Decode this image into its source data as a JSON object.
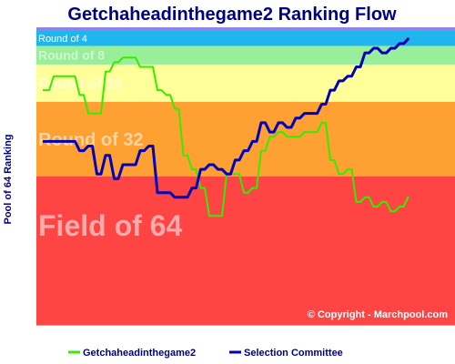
{
  "chart_data": {
    "type": "line",
    "title": "Getchaheadinthegame2 Ranking Flow",
    "ylabel": "Pool of 64 Ranking",
    "xlabel": "",
    "bands": [
      {
        "label": "Round of 4",
        "from": 1,
        "to": 4,
        "color": "#1FB5EE"
      },
      {
        "label": "Round of 8",
        "from": 5,
        "to": 8,
        "color": "#99EE99"
      },
      {
        "label": "Round of 16",
        "from": 9,
        "to": 16,
        "color": "#FFFF99"
      },
      {
        "label": "Round of 32",
        "from": 17,
        "to": 32,
        "color": "#FFA033"
      },
      {
        "label": "Field of 64",
        "from": 33,
        "to": 64,
        "color": "#FF4444"
      }
    ],
    "top_band_color": "#8C86E6",
    "ylim": [
      0.5,
      64
    ],
    "x_count": 43,
    "series": [
      {
        "name": "Getchaheadinthegame2",
        "color": "#33EE00",
        "values": [
          14,
          11,
          11,
          11,
          15,
          19,
          19,
          10,
          8,
          7,
          7,
          9,
          9,
          14,
          15,
          18,
          28,
          31,
          35,
          41,
          41,
          32,
          32,
          36,
          35,
          27,
          24,
          23,
          24,
          24,
          23,
          23,
          21,
          29,
          32,
          31,
          38,
          37,
          39,
          38,
          40,
          39,
          37
        ]
      },
      {
        "name": "Selection Committee",
        "color": "#0000BB",
        "values": [
          25,
          25,
          25,
          25,
          27,
          26,
          32,
          28,
          33,
          30,
          30,
          27,
          26,
          36,
          36,
          37,
          37,
          35,
          31,
          30,
          31,
          32,
          29,
          27,
          25,
          21,
          23,
          21,
          22,
          20,
          19,
          19,
          17,
          14,
          12,
          11,
          9,
          6,
          5,
          6,
          5,
          4,
          3
        ]
      }
    ],
    "copyright": "© Copyright - Marchpool.com"
  }
}
